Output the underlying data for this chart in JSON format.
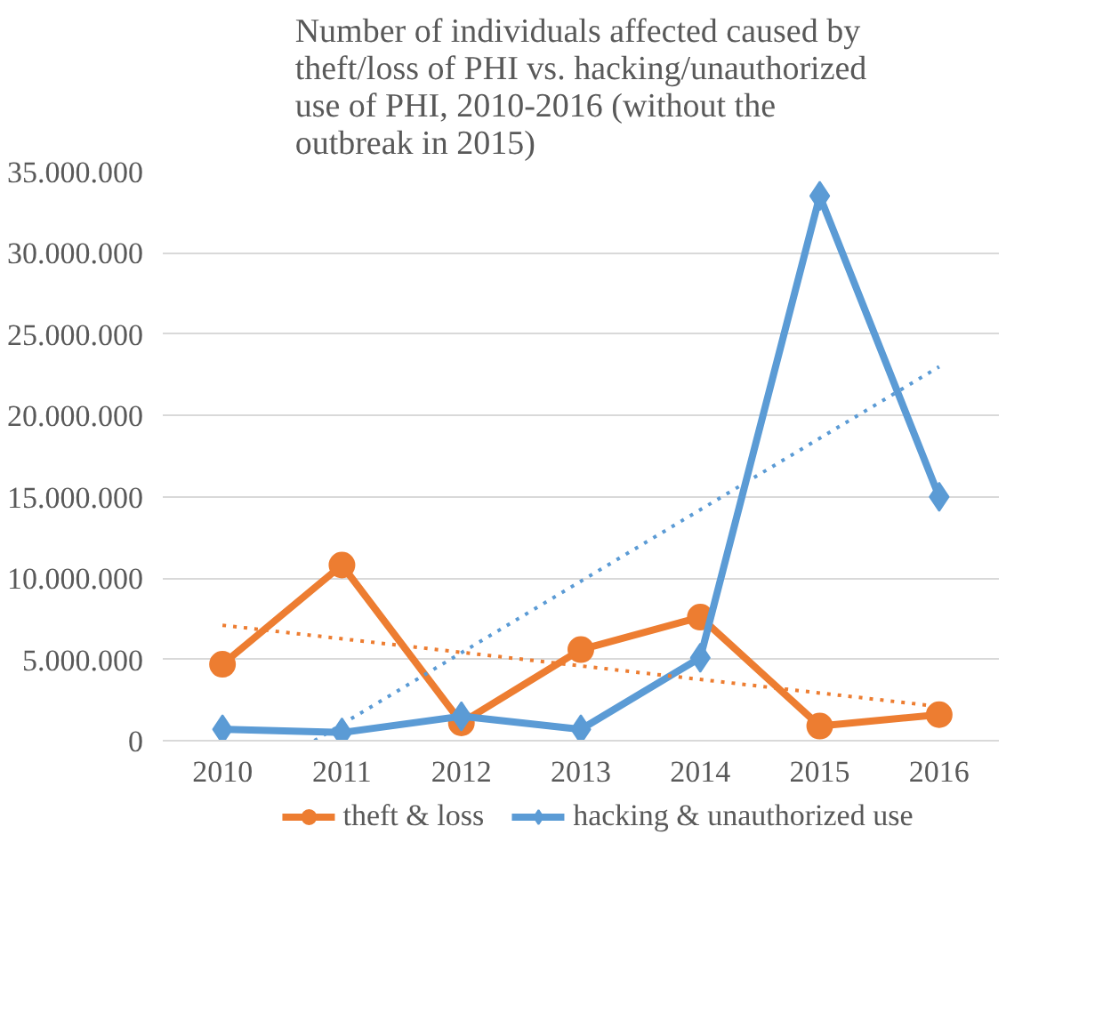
{
  "chart_data": {
    "type": "line",
    "title": "Number of individuals affected caused by theft/loss of PHI vs. hacking/unauthorized use of PHI, 2010-2016 (without the outbreak in 2015)",
    "x": [
      2010,
      2011,
      2012,
      2013,
      2014,
      2015,
      2016
    ],
    "xlim": [
      2009.5,
      2016.5
    ],
    "xticks": [
      2010,
      2011,
      2012,
      2013,
      2014,
      2015,
      2016
    ],
    "ylim": [
      0,
      35000000
    ],
    "yticks": [
      0,
      {
        "value": 5000000,
        "label": "5.000.000"
      },
      {
        "value": 10000000,
        "label": "10.000.000"
      },
      {
        "value": 15000000,
        "label": "15.000.000"
      },
      {
        "value": 20000000,
        "label": "20.000.000"
      },
      {
        "value": 25000000,
        "label": "25.000.000"
      },
      {
        "value": 30000000,
        "label": "30.000.000"
      },
      {
        "value": 35000000,
        "label": "35.000.000"
      }
    ],
    "grid": "y",
    "legend": "bottom",
    "line_style": "solid",
    "series": [
      {
        "name": "theft & loss",
        "color": "#ed7d31",
        "marker": "circle",
        "values": [
          4700000,
          10800000,
          1100000,
          5600000,
          7600000,
          900000,
          1600000
        ]
      },
      {
        "name": "hacking & unauthorized use",
        "color": "#5b9bd5",
        "marker": "diamond",
        "values": [
          700000,
          500000,
          1500000,
          700000,
          5100000,
          33500000,
          15000000
        ]
      },
      {
        "color": "#ed7d31",
        "marker": "none",
        "line_style": "dotted",
        "x": [
          2010,
          2016
        ],
        "values": [
          7100000,
          2100000
        ]
      },
      {
        "color": "#5b9bd5",
        "marker": "none",
        "line_style": "dotted",
        "x": [
          2010.77,
          2016
        ],
        "values": [
          0,
          23000000
        ]
      }
    ]
  }
}
